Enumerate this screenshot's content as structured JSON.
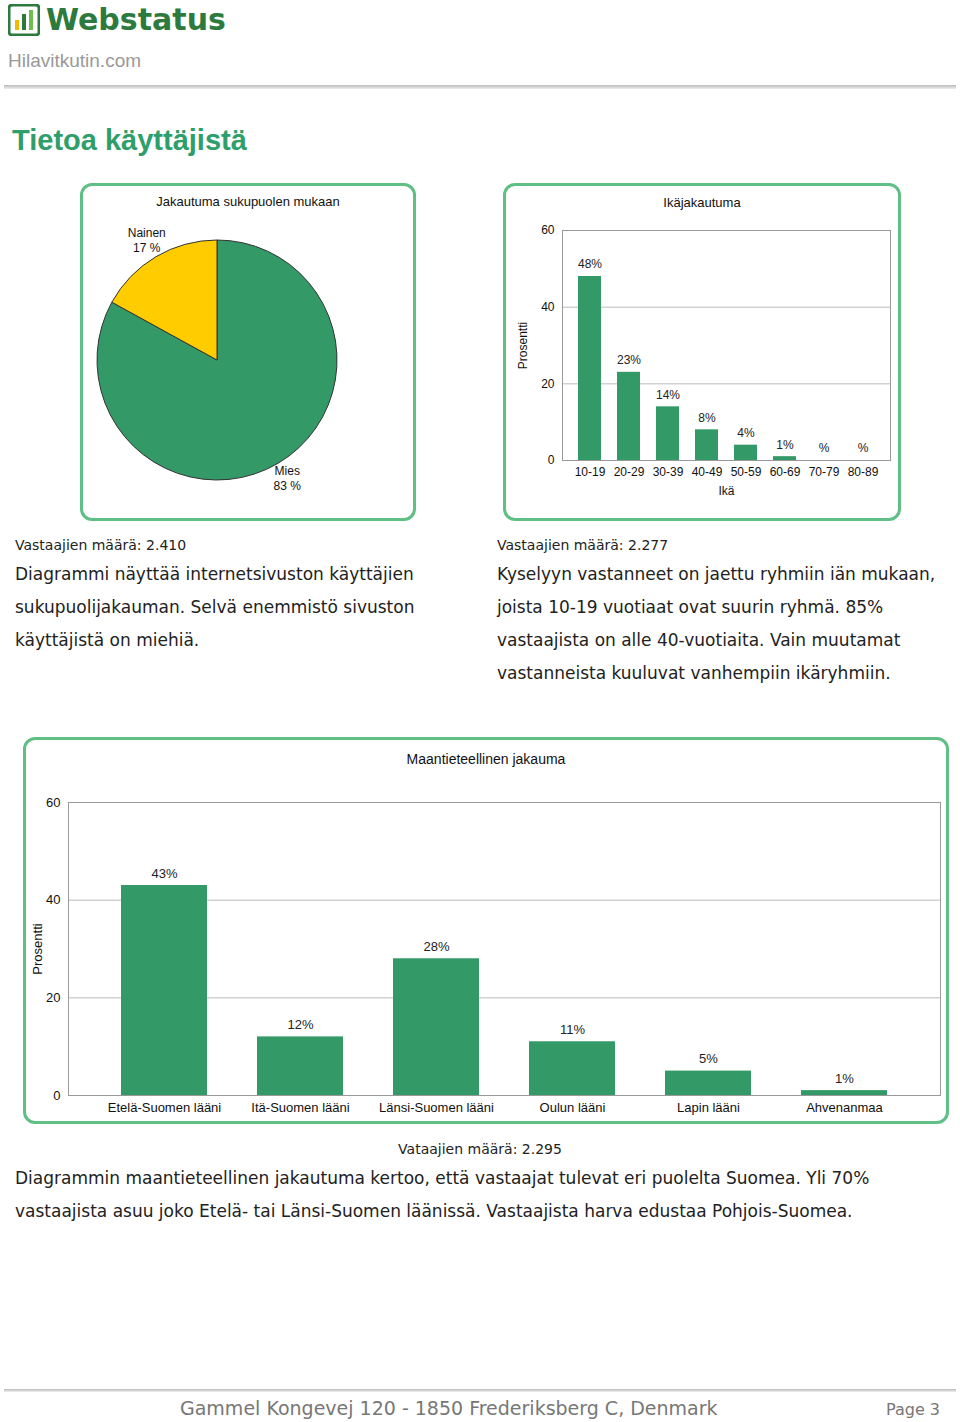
{
  "page": {
    "logo": "Webstatus",
    "site": "Hilavitkutin.com",
    "heading": "Tietoa käyttäjistä",
    "footer": "Gammel Kongevej 120 - 1850 Frederiksberg C, Denmark",
    "page_number": "Page 3"
  },
  "chart_data": [
    {
      "type": "pie",
      "title": "Jakautuma sukupuolen mukaan",
      "categories": [
        "Mies",
        "Nainen"
      ],
      "values": [
        83,
        17
      ],
      "value_labels": [
        "83 %",
        "17 %"
      ],
      "colors": [
        "#339966",
        "#ffcc00"
      ],
      "data_labels": true,
      "annotations": [
        "Vastaajien määrä: 2.410",
        "Diagrammi näyttää internetsivuston käyttäjien sukupuolijakauman. Selvä enemmistö sivuston käyttäjistä on miehiä."
      ]
    },
    {
      "type": "bar",
      "title": "Ikäjakautuma",
      "xlabel": "Ikä",
      "ylabel": "Prosentti",
      "categories": [
        "10-19",
        "20-29",
        "30-39",
        "40-49",
        "50-59",
        "60-69",
        "70-79",
        "80-89"
      ],
      "values": [
        48,
        23,
        14,
        8,
        4,
        1,
        null,
        null
      ],
      "value_labels": [
        "48%",
        "23%",
        "14%",
        "8%",
        "4%",
        "1%",
        "%",
        "%"
      ],
      "color": "#339966",
      "ylim": [
        0,
        60
      ],
      "yticks": [
        0,
        20,
        40,
        60
      ],
      "grid": true,
      "data_labels": true,
      "annotations": [
        "Vastaajien määrä: 2.277",
        "Kyselyyn vastanneet on jaettu ryhmiin iän mukaan, joista 10-19 vuotiaat ovat suurin ryhmä. 85% vastaajista on alle 40-vuotiaita. Vain muutamat vastanneista kuuluvat vanhempiin ikäryhmiin."
      ]
    },
    {
      "type": "bar",
      "title": "Maantieteellinen jakauma",
      "ylabel": "Prosentti",
      "categories": [
        "Etelä-Suomen lääni",
        "Itä-Suomen lääni",
        "Länsi-Suomen lääni",
        "Oulun lääni",
        "Lapin lääni",
        "Ahvenanmaa"
      ],
      "values": [
        43,
        12,
        28,
        11,
        5,
        1
      ],
      "value_labels": [
        "43%",
        "12%",
        "28%",
        "11%",
        "5%",
        "1%"
      ],
      "color": "#339966",
      "ylim": [
        0,
        60
      ],
      "yticks": [
        0,
        20,
        40,
        60
      ],
      "grid": true,
      "data_labels": true,
      "annotations": [
        "Vataajien määrä: 2.295",
        "Diagrammin maantieteellinen jakautuma kertoo, että vastaajat tulevat eri puolelta Suomea. Yli 70% vastaajista asuu joko Etelä- tai Länsi-Suomen läänissä. Vastaajista harva edustaa Pohjois-Suomea."
      ]
    }
  ]
}
